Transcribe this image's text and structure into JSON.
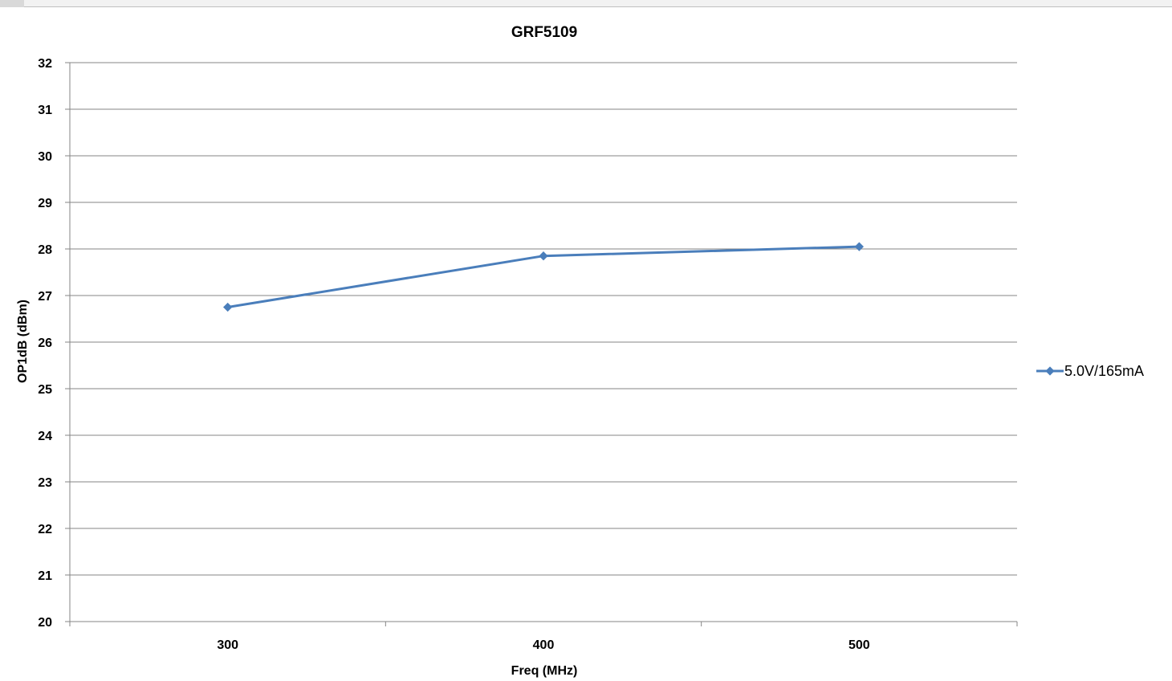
{
  "chart_data": {
    "type": "line",
    "title": "GRF5109",
    "xlabel": "Freq (MHz)",
    "ylabel": "OP1dB (dBm)",
    "categories": [
      "300",
      "400",
      "500"
    ],
    "series": [
      {
        "name": "5.0V/165mA",
        "values": [
          26.75,
          27.85,
          28.05
        ],
        "color": "#4a7ebb"
      }
    ],
    "ylim": [
      20,
      32
    ],
    "yticks": [
      "20",
      "21",
      "22",
      "23",
      "24",
      "25",
      "26",
      "27",
      "28",
      "29",
      "30",
      "31",
      "32"
    ],
    "grid": true,
    "legend": "right",
    "colors": {
      "gridline": "#868686",
      "axis": "#868686",
      "text": "#000000"
    }
  }
}
